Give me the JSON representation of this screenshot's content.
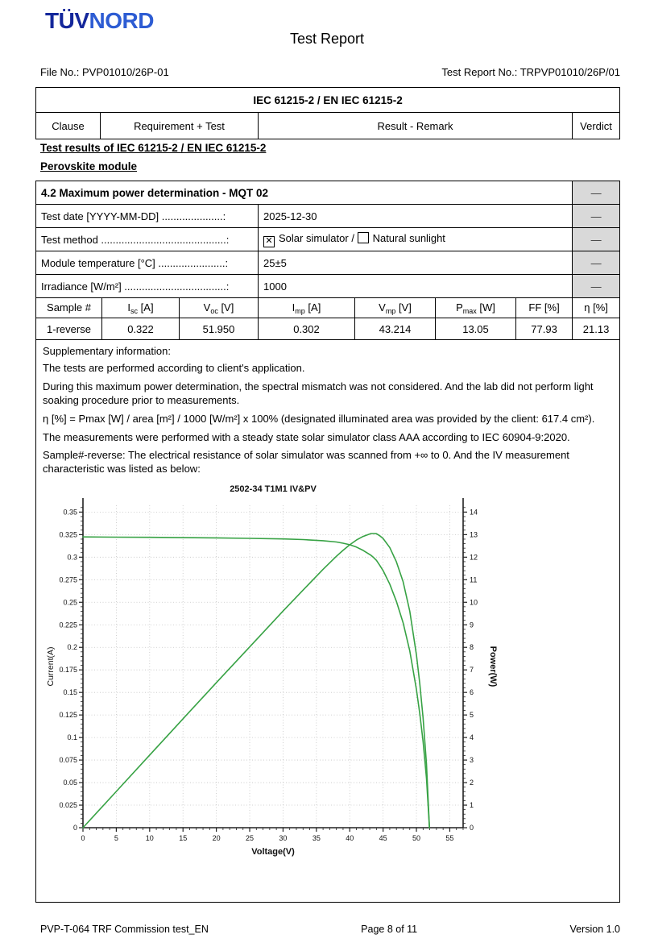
{
  "page": {
    "logo": {
      "tuv": "TÜV",
      "nord": "NORD"
    },
    "title": "Test Report",
    "file_no": "File No.: PVP01010/26P-01",
    "report_no": "Test Report No.: TRPVP01010/26P/01",
    "footer": {
      "left": "PVP-T-064 TRF Commission test_EN",
      "center": "Page 8 of 11",
      "right": "Version 1.0"
    },
    "colors": {
      "tuv_blue": "#14279b",
      "nord_blue": "#2d5cd3",
      "verdict_gray": "#d9d9d9",
      "curve_green": "#37a244"
    }
  },
  "standard_table": {
    "title": "IEC 61215-2 / EN IEC 61215-2",
    "columns": [
      "Clause",
      "Requirement + Test",
      "Result - Remark",
      "Verdict"
    ]
  },
  "headings": {
    "line1": "Test results of IEC 61215-2 / EN IEC 61215-2",
    "line2": "Perovskite module"
  },
  "mqt": {
    "section_title": "4.2 Maximum power determination - MQT 02",
    "dash": "—",
    "rows": {
      "test_date": {
        "label": "Test date [YYYY-MM-DD] .....................:",
        "value": "2025-12-30"
      },
      "test_method": {
        "label": "Test method ...........................................:",
        "option1": "Solar simulator",
        "separator": "/",
        "option2": "Natural sunlight",
        "mark": "✕"
      },
      "module_temp": {
        "label": "Module temperature [°C] .......................:",
        "value": "25±5"
      },
      "irradiance": {
        "label": "Irradiance [W/m²] ...................................:",
        "value": "1000"
      }
    },
    "sample_table": {
      "headers": [
        {
          "pre": "Sample #",
          "sub": "",
          "post": ""
        },
        {
          "pre": "I",
          "sub": "sc",
          "post": " [A]"
        },
        {
          "pre": "V",
          "sub": "oc",
          "post": " [V]"
        },
        {
          "pre": "I",
          "sub": "mp",
          "post": " [A]"
        },
        {
          "pre": "V",
          "sub": "mp",
          "post": " [V]"
        },
        {
          "pre": "P",
          "sub": "max",
          "post": " [W]"
        },
        {
          "pre": "FF",
          "sub": "",
          "post": " [%]"
        },
        {
          "pre": "η",
          "sub": "",
          "post": " [%]"
        }
      ],
      "row": [
        "1-reverse",
        "0.322",
        "51.950",
        "0.302",
        "43.214",
        "13.05",
        "77.93",
        "21.13"
      ]
    },
    "supplementary": {
      "title": "Supplementary information:",
      "paragraphs": [
        "The tests are performed according to client's application.",
        "During this maximum power determination, the spectral mismatch was not considered. And the lab did not perform light soaking procedure prior to measurements.",
        "η [%] = Pmax [W] / area [m²] / 1000 [W/m²] x 100% (designated illuminated area was provided by the client: 617.4 cm²).",
        "The measurements were performed with a steady state solar simulator class AAA according to IEC 60904-9:2020.",
        "Sample#-reverse: The electrical resistance of solar simulator was scanned from +∞ to 0. And the IV measurement characteristic was listed as below:"
      ]
    }
  },
  "chart_data": {
    "type": "line",
    "title": "2502-34 T1M1 IV&PV",
    "xlabel": "Voltage(V)",
    "ylabel_left": "Current(A)",
    "ylabel_right": "Power(W)",
    "xlim": [
      0,
      57
    ],
    "ylim_left": [
      0,
      0.3575
    ],
    "ylim_right": [
      0,
      14.3
    ],
    "x_major_ticks": [
      0,
      5,
      10,
      15,
      20,
      25,
      30,
      35,
      40,
      45,
      50,
      55
    ],
    "y_left_major_ticks": [
      0,
      0.025,
      0.05,
      0.075,
      0.1,
      0.125,
      0.15,
      0.175,
      0.2,
      0.225,
      0.25,
      0.275,
      0.3,
      0.325,
      0.35
    ],
    "y_right_major_ticks": [
      0,
      1,
      2,
      3,
      4,
      5,
      6,
      7,
      8,
      9,
      10,
      11,
      12,
      13,
      14
    ],
    "grid": true,
    "legend": "none",
    "line_color": "#37a244",
    "grid_color": "#c4c4c4",
    "series": [
      {
        "name": "IV curve (Current vs Voltage)",
        "axis": "left",
        "points": [
          [
            0,
            0.3225
          ],
          [
            5,
            0.3222
          ],
          [
            10,
            0.322
          ],
          [
            15,
            0.3217
          ],
          [
            20,
            0.3214
          ],
          [
            25,
            0.3209
          ],
          [
            30,
            0.3202
          ],
          [
            33,
            0.3195
          ],
          [
            36,
            0.3183
          ],
          [
            38,
            0.3168
          ],
          [
            39,
            0.3155
          ],
          [
            40,
            0.3138
          ],
          [
            41,
            0.3112
          ],
          [
            42,
            0.3075
          ],
          [
            43.2,
            0.302
          ],
          [
            43.6,
            0.2995
          ],
          [
            44,
            0.2965
          ],
          [
            44.5,
            0.291
          ],
          [
            45,
            0.2852
          ],
          [
            46,
            0.2702
          ],
          [
            47,
            0.2509
          ],
          [
            48,
            0.2273
          ],
          [
            49,
            0.196
          ],
          [
            50,
            0.1535
          ],
          [
            50.5,
            0.1265
          ],
          [
            51,
            0.0955
          ],
          [
            51.5,
            0.055
          ],
          [
            51.95,
            0
          ]
        ]
      },
      {
        "name": "PV curve (Power vs Voltage)",
        "axis": "right",
        "points": [
          [
            0,
            0
          ],
          [
            5,
            1.61
          ],
          [
            10,
            3.22
          ],
          [
            15,
            4.83
          ],
          [
            20,
            6.43
          ],
          [
            25,
            8.02
          ],
          [
            30,
            9.61
          ],
          [
            33,
            10.54
          ],
          [
            36,
            11.46
          ],
          [
            38,
            12.04
          ],
          [
            39,
            12.3
          ],
          [
            40,
            12.55
          ],
          [
            41,
            12.76
          ],
          [
            42,
            12.92
          ],
          [
            43.2,
            13.05
          ],
          [
            43.6,
            13.05
          ],
          [
            44,
            13.04
          ],
          [
            44.5,
            12.95
          ],
          [
            45,
            12.83
          ],
          [
            46,
            12.43
          ],
          [
            47,
            11.79
          ],
          [
            48,
            10.91
          ],
          [
            49,
            9.6
          ],
          [
            50,
            7.68
          ],
          [
            50.5,
            6.39
          ],
          [
            51,
            4.87
          ],
          [
            51.5,
            2.83
          ],
          [
            51.95,
            0
          ]
        ]
      }
    ],
    "key_points": {
      "Isc_A": 0.322,
      "Voc_V": 51.95,
      "Imp_A": 0.302,
      "Vmp_V": 43.214,
      "Pmax_W": 13.05
    }
  }
}
